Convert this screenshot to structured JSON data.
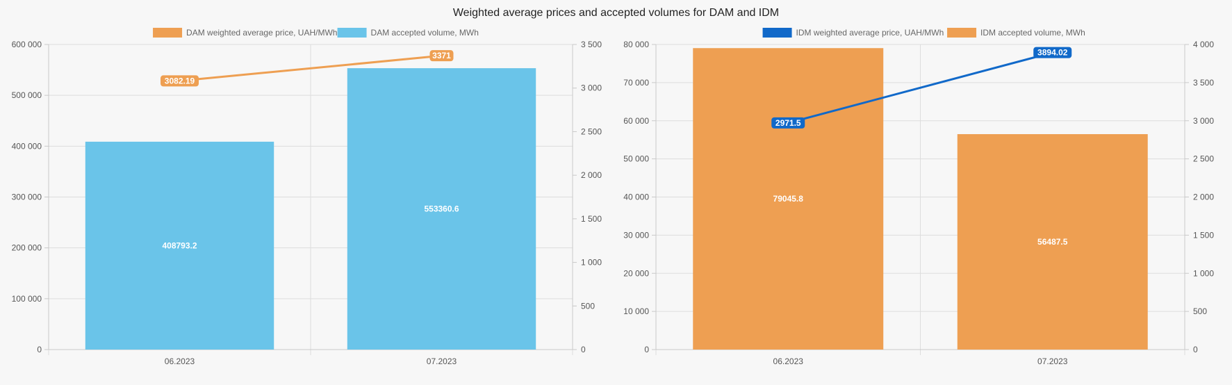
{
  "title": "Weighted average prices and accepted volumes for DAM and IDM",
  "colors": {
    "blue_light": "#6ac4e9",
    "orange": "#ee9f52",
    "blue_dark": "#1169c9"
  },
  "chart_data": [
    {
      "type": "bar",
      "categories": [
        "06.2023",
        "07.2023"
      ],
      "legend": {
        "position": "top-center"
      },
      "series": [
        {
          "name": "DAM weighted average price, UAH/MWh",
          "type": "line",
          "axis": "right",
          "color": "#ee9f52",
          "values": [
            3082.19,
            3371
          ],
          "labels": [
            "3082.19",
            "3371"
          ]
        },
        {
          "name": "DAM accepted volume, MWh",
          "type": "bar",
          "axis": "left",
          "color": "#6ac4e9",
          "values": [
            408793.2,
            553360.6
          ],
          "labels": [
            "408793.2",
            "553360.6"
          ]
        }
      ],
      "y_left": {
        "min": 0,
        "max": 600000,
        "step": 100000,
        "ticks": [
          "0",
          "100 000",
          "200 000",
          "300 000",
          "400 000",
          "500 000",
          "600 000"
        ]
      },
      "y_right": {
        "min": 0,
        "max": 3500,
        "step": 500,
        "ticks": [
          "0",
          "500",
          "1 000",
          "1 500",
          "2 000",
          "2 500",
          "3 000",
          "3 500"
        ]
      },
      "grid": true
    },
    {
      "type": "bar",
      "categories": [
        "06.2023",
        "07.2023"
      ],
      "legend": {
        "position": "top-center"
      },
      "series": [
        {
          "name": "IDM weighted average price, UAH/MWh",
          "type": "line",
          "axis": "right",
          "color": "#1169c9",
          "values": [
            2971.5,
            3894.02
          ],
          "labels": [
            "2971.5",
            "3894.02"
          ]
        },
        {
          "name": "IDM accepted volume, MWh",
          "type": "bar",
          "axis": "left",
          "color": "#ee9f52",
          "values": [
            79045.8,
            56487.5
          ],
          "labels": [
            "79045.8",
            "56487.5"
          ]
        }
      ],
      "y_left": {
        "min": 0,
        "max": 80000,
        "step": 10000,
        "ticks": [
          "0",
          "10 000",
          "20 000",
          "30 000",
          "40 000",
          "50 000",
          "60 000",
          "70 000",
          "80 000"
        ]
      },
      "y_right": {
        "min": 0,
        "max": 4000,
        "step": 500,
        "ticks": [
          "0",
          "500",
          "1 000",
          "1 500",
          "2 000",
          "2 500",
          "3 000",
          "3 500",
          "4 000"
        ]
      },
      "grid": true
    }
  ]
}
